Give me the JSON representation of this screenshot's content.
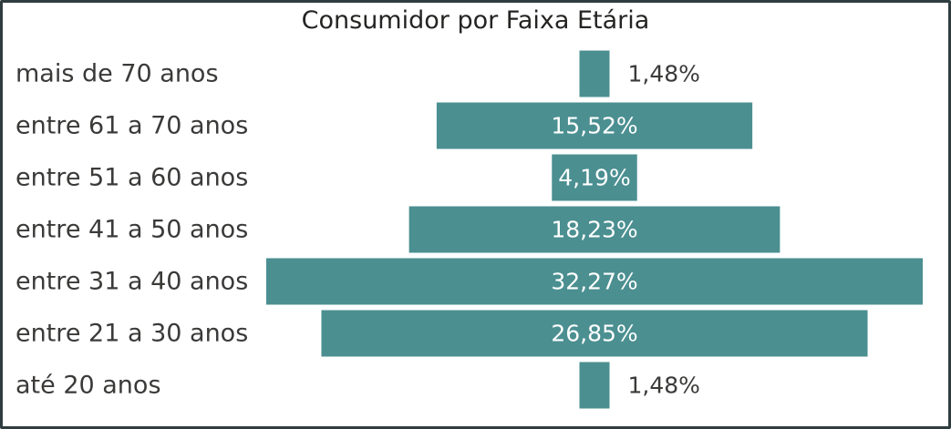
{
  "chart_data": {
    "type": "bar",
    "subtype": "funnel",
    "title": "Consumidor por Faixa Etária",
    "categories": [
      "mais de 70 anos",
      "entre 61 a 70 anos",
      "entre 51 a 60 anos",
      "entre 41 a 50 anos",
      "entre 31 a 40 anos",
      "entre 21 a 30 anos",
      "até 20 anos"
    ],
    "values": [
      1.48,
      15.52,
      4.19,
      18.23,
      32.27,
      26.85,
      1.48
    ],
    "value_labels": [
      "1,48%",
      "15,52%",
      "4,19%",
      "18,23%",
      "32,27%",
      "26,85%",
      "1,48%"
    ],
    "unit": "%",
    "bar_color": "#4b8f91",
    "label_inside_color": "#ffffff",
    "label_outside_color": "#3b3a39",
    "grid": false,
    "legend": "none"
  }
}
